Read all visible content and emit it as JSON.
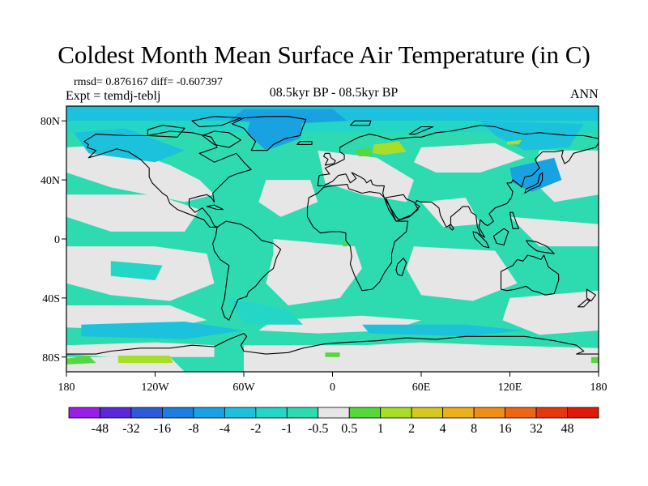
{
  "chart_data": {
    "type": "heatmap",
    "title": "Coldest Month Mean Surface Air Temperature (in C)",
    "stats_line": "rmsd= 0.876167 diff= -0.607397",
    "expt_line": "Expt = temdj-teblj",
    "experiment_label": "08.5kyr BP - 08.5kyr BP",
    "season": "ANN",
    "x_ticks": [
      "180",
      "120W",
      "60W",
      "0",
      "60E",
      "120E",
      "180"
    ],
    "y_ticks": [
      "80N",
      "40N",
      "0",
      "40S",
      "80S"
    ],
    "xlim": [
      -180,
      180
    ],
    "ylim": [
      -90,
      90
    ],
    "colorbar": {
      "levels": [
        "-48",
        "-32",
        "-16",
        "-8",
        "-4",
        "-2",
        "-1",
        "-0.5",
        "0.5",
        "1",
        "2",
        "4",
        "8",
        "16",
        "32",
        "48"
      ],
      "colors": [
        "#9a1fe6",
        "#5a28d8",
        "#2e5ad6",
        "#1c7ee0",
        "#18a2e2",
        "#1cc2dc",
        "#23d6c6",
        "#2edbb0",
        "#e6e6e6",
        "#55d83a",
        "#a6de28",
        "#d6c81e",
        "#ecb01a",
        "#ef8d17",
        "#ee6614",
        "#e6380e",
        "#e01a08"
      ]
    },
    "palette": {
      "neutral": "#e6e6e6",
      "cool_1": "#2edbb0",
      "cool_2": "#23d6c6",
      "cool_3": "#1cc2dc",
      "cool_4": "#18a2e2",
      "warm_1": "#55d83a",
      "warm_2": "#a6de28"
    }
  }
}
